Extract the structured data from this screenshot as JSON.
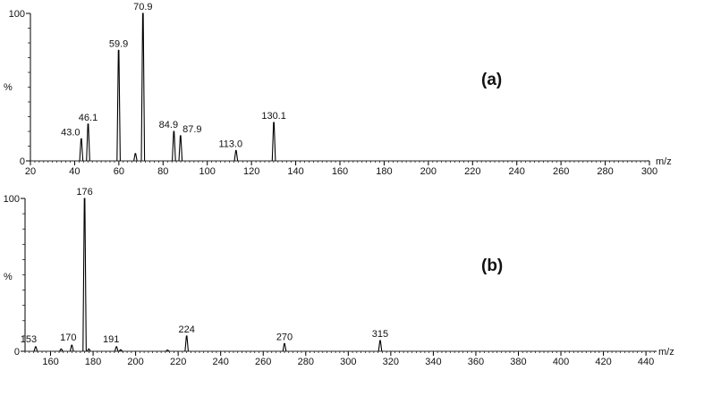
{
  "chart_data": [
    {
      "type": "bar",
      "panel_label": "(a)",
      "xlabel": "m/z",
      "ylabel": "%",
      "xlim": [
        20,
        300
      ],
      "ylim": [
        0,
        100
      ],
      "x_ticks": [
        20,
        40,
        60,
        80,
        100,
        120,
        140,
        160,
        180,
        200,
        220,
        240,
        260,
        280,
        300
      ],
      "y_ticks": [
        0,
        100
      ],
      "series": [
        {
          "values": [
            {
              "x": 43.0,
              "y": 15,
              "label": "43.0"
            },
            {
              "x": 46.1,
              "y": 25,
              "label": "46.1"
            },
            {
              "x": 59.9,
              "y": 75,
              "label": "59.9"
            },
            {
              "x": 67.5,
              "y": 5
            },
            {
              "x": 70.9,
              "y": 100,
              "label": "70.9"
            },
            {
              "x": 84.9,
              "y": 20,
              "label": "84.9"
            },
            {
              "x": 87.9,
              "y": 17,
              "label": "87.9"
            },
            {
              "x": 113.0,
              "y": 7,
              "label": "113.0"
            },
            {
              "x": 130.1,
              "y": 26,
              "label": "130.1"
            }
          ]
        }
      ]
    },
    {
      "type": "bar",
      "panel_label": "(b)",
      "xlabel": "m/z",
      "ylabel": "%",
      "xlim": [
        148,
        445
      ],
      "ylim": [
        0,
        100
      ],
      "x_ticks": [
        160,
        180,
        200,
        220,
        240,
        260,
        280,
        300,
        320,
        340,
        360,
        380,
        400,
        420,
        440
      ],
      "y_ticks": [
        0,
        100
      ],
      "series": [
        {
          "values": [
            {
              "x": 153,
              "y": 3,
              "label": "153"
            },
            {
              "x": 165,
              "y": 1.5
            },
            {
              "x": 170,
              "y": 4,
              "label": "170"
            },
            {
              "x": 176,
              "y": 100,
              "label": "176"
            },
            {
              "x": 178,
              "y": 1.5
            },
            {
              "x": 191,
              "y": 3,
              "label": "191"
            },
            {
              "x": 193,
              "y": 1
            },
            {
              "x": 215,
              "y": 0.8
            },
            {
              "x": 224,
              "y": 10,
              "label": "224"
            },
            {
              "x": 270,
              "y": 5,
              "label": "270"
            },
            {
              "x": 315,
              "y": 7,
              "label": "315"
            }
          ]
        }
      ]
    }
  ]
}
